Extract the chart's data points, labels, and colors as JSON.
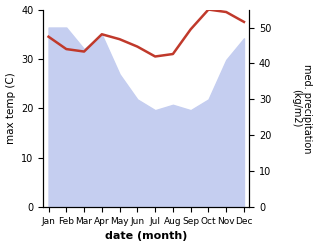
{
  "months": [
    "Jan",
    "Feb",
    "Mar",
    "Apr",
    "May",
    "Jun",
    "Jul",
    "Aug",
    "Sep",
    "Oct",
    "Nov",
    "Dec"
  ],
  "temperature": [
    34.5,
    32.0,
    31.5,
    35.0,
    34.0,
    32.5,
    30.5,
    31.0,
    36.0,
    40.0,
    39.5,
    37.5
  ],
  "precipitation": [
    50.0,
    50.0,
    44.0,
    48.0,
    37.0,
    30.0,
    27.0,
    28.5,
    27.0,
    30.0,
    41.0,
    47.0
  ],
  "temp_color": "#c0392b",
  "precip_fill_color": "#c5cef0",
  "ylabel_left": "max temp (C)",
  "ylabel_right": "med. precipitation\n(kg/m2)",
  "xlabel": "date (month)",
  "ylim_left": [
    0,
    40
  ],
  "ylim_right": [
    0,
    55
  ],
  "yticks_left": [
    0,
    10,
    20,
    30,
    40
  ],
  "yticks_right": [
    0,
    10,
    20,
    30,
    40,
    50
  ],
  "background_color": "#ffffff",
  "temp_linewidth": 1.8
}
